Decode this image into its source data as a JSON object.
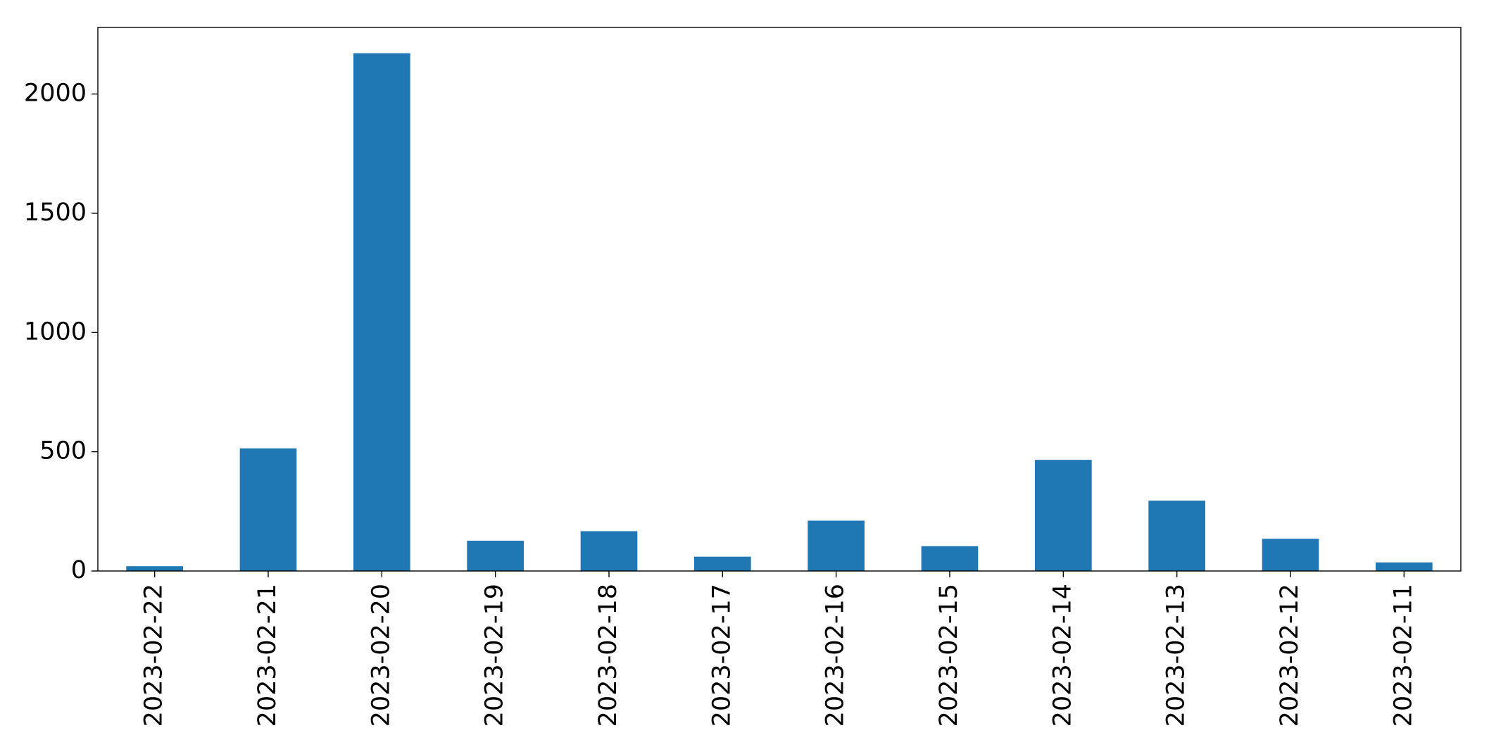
{
  "chart_data": {
    "type": "bar",
    "categories": [
      "2023-02-22",
      "2023-02-21",
      "2023-02-20",
      "2023-02-19",
      "2023-02-18",
      "2023-02-17",
      "2023-02-16",
      "2023-02-15",
      "2023-02-14",
      "2023-02-13",
      "2023-02-12",
      "2023-02-11"
    ],
    "values": [
      20,
      514,
      2171,
      127,
      167,
      60,
      211,
      104,
      466,
      295,
      135,
      36
    ],
    "color": "#1f77b4",
    "ylim": [
      0,
      2279
    ],
    "yticks": [
      0,
      500,
      1000,
      1500,
      2000
    ],
    "grid": false
  }
}
